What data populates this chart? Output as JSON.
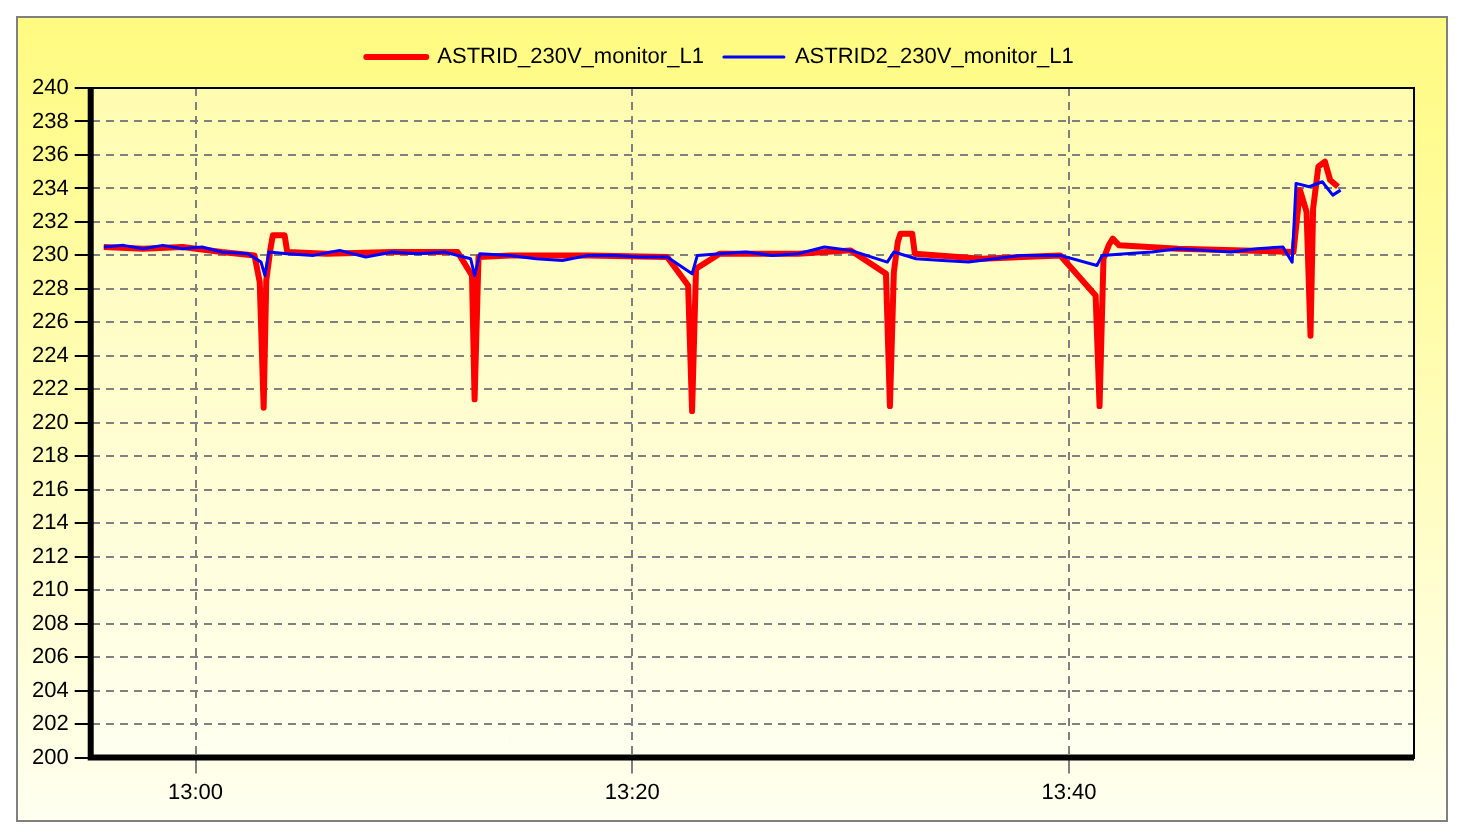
{
  "chart_data": {
    "type": "line",
    "series": [
      {
        "name": "ASTRID_230V_monitor_L1",
        "color": "#ff0000",
        "x": [
          12.93,
          12.96,
          12.99,
          13.02,
          13.045,
          13.049,
          13.052,
          13.054,
          13.057,
          13.059,
          13.068,
          13.07,
          13.1,
          13.15,
          13.2,
          13.211,
          13.213,
          13.216,
          13.24,
          13.3,
          13.36,
          13.376,
          13.379,
          13.382,
          13.4,
          13.46,
          13.5,
          13.527,
          13.53,
          13.533,
          13.536,
          13.538,
          13.547,
          13.549,
          13.6,
          13.66,
          13.687,
          13.69,
          13.693,
          13.697,
          13.7,
          13.705,
          13.75,
          13.8,
          13.838,
          13.843,
          13.848,
          13.851,
          13.853,
          13.857,
          13.862,
          13.866,
          13.872
        ],
        "values": [
          230.5,
          230.4,
          230.5,
          230.2,
          230.0,
          228.4,
          220.9,
          228.5,
          230.3,
          231.2,
          231.2,
          230.2,
          230.1,
          230.2,
          230.2,
          228.8,
          221.4,
          229.9,
          230.0,
          230.0,
          229.9,
          228.2,
          220.7,
          229.2,
          230.1,
          230.1,
          230.3,
          228.9,
          221.0,
          229.0,
          230.8,
          231.3,
          231.3,
          230.1,
          229.8,
          230.0,
          227.6,
          221.0,
          229.8,
          230.6,
          231.0,
          230.6,
          230.4,
          230.3,
          230.2,
          233.9,
          232.6,
          225.2,
          232.8,
          235.3,
          235.6,
          234.5,
          234.1
        ]
      },
      {
        "name": "ASTRID2_230V_monitor_L1",
        "color": "#0000ff",
        "x": [
          12.93,
          12.945,
          12.96,
          12.975,
          12.99,
          13.005,
          13.02,
          13.04,
          13.05,
          13.053,
          13.056,
          13.07,
          13.09,
          13.11,
          13.13,
          13.15,
          13.17,
          13.19,
          13.21,
          13.213,
          13.217,
          13.24,
          13.26,
          13.28,
          13.3,
          13.32,
          13.34,
          13.36,
          13.379,
          13.383,
          13.4,
          13.42,
          13.44,
          13.46,
          13.48,
          13.5,
          13.528,
          13.533,
          13.55,
          13.57,
          13.59,
          13.61,
          13.63,
          13.66,
          13.688,
          13.692,
          13.71,
          13.73,
          13.75,
          13.77,
          13.79,
          13.81,
          13.83,
          13.837,
          13.84,
          13.85,
          13.86,
          13.868,
          13.874
        ],
        "values": [
          230.5,
          230.6,
          230.4,
          230.6,
          230.4,
          230.5,
          230.2,
          230.1,
          229.6,
          228.8,
          230.2,
          230.1,
          230.0,
          230.3,
          229.9,
          230.2,
          230.1,
          230.2,
          229.8,
          228.8,
          230.1,
          230.0,
          229.8,
          229.7,
          230.0,
          230.0,
          229.9,
          229.9,
          228.9,
          230.0,
          230.1,
          230.2,
          230.0,
          230.1,
          230.5,
          230.3,
          229.6,
          230.2,
          229.8,
          229.7,
          229.6,
          229.8,
          230.0,
          230.0,
          229.4,
          230.0,
          230.1,
          230.2,
          230.4,
          230.3,
          230.2,
          230.4,
          230.5,
          229.6,
          234.3,
          234.1,
          234.4,
          233.6,
          233.9
        ]
      }
    ],
    "xlim": [
      12.92,
      13.93
    ],
    "xticks": [
      {
        "value": 13,
        "label": "13:00"
      },
      {
        "value": 13.3333,
        "label": "13:20"
      },
      {
        "value": 13.6667,
        "label": "13:40"
      }
    ],
    "ylim": [
      200,
      240
    ],
    "yticks": [
      200,
      202,
      204,
      206,
      208,
      210,
      212,
      214,
      216,
      218,
      220,
      222,
      224,
      226,
      228,
      230,
      232,
      234,
      236,
      238,
      240
    ],
    "grid": true,
    "legend": "top",
    "marker": "none",
    "line_style": "solid"
  }
}
